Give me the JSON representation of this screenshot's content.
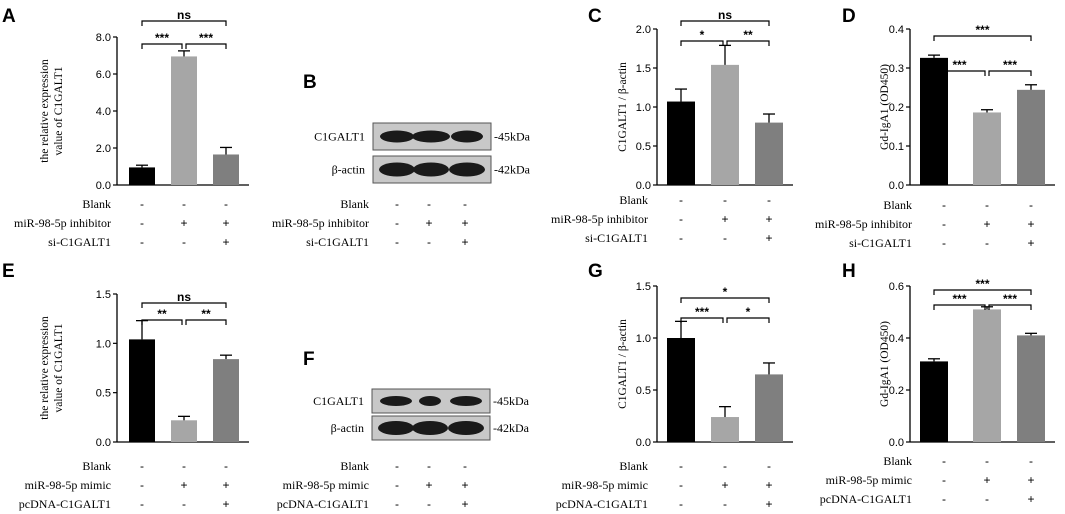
{
  "colors": {
    "blank": "#000000",
    "treated": "#a6a6a6",
    "rescue": "#7f7f7f",
    "blot_bg": "#c8c8c8",
    "band": "#1a1a1a"
  },
  "rows": {
    "blank": "Blank",
    "inhibitor": "miR-98-5p inhibitor",
    "si": "si-C1GALT1",
    "mimic": "miR-98-5p mimic",
    "pcdna": "pcDNA-C1GALT1"
  },
  "signs": {
    "inhibitor_set": [
      [
        "-",
        "-",
        "-"
      ],
      [
        "-",
        "+",
        "+"
      ],
      [
        "-",
        "-",
        "+"
      ]
    ],
    "mimic_set": [
      [
        "-",
        "-",
        "-"
      ],
      [
        "-",
        "+",
        "+"
      ],
      [
        "-",
        "-",
        "+"
      ]
    ]
  },
  "blots": [
    {
      "panel": "B",
      "proteins": [
        "C1GALT1",
        "β-actin"
      ],
      "sizes": [
        "-45kDa",
        "-42kDa"
      ]
    },
    {
      "panel": "F",
      "proteins": [
        "C1GALT1",
        "β-actin"
      ],
      "sizes": [
        "-45kDa",
        "-42kDa"
      ]
    }
  ],
  "chart_data": [
    {
      "panel": "A",
      "type": "bar",
      "title": "",
      "ylabel": [
        "the relative expression",
        "value of C1GALT1"
      ],
      "ylim": [
        0,
        8
      ],
      "yticks": [
        "0.0",
        "2.0",
        "4.0",
        "6.0",
        "8.0"
      ],
      "values": [
        0.95,
        6.95,
        1.65
      ],
      "errors": [
        0.12,
        0.3,
        0.38
      ],
      "significance": [
        "***",
        "***",
        "ns"
      ]
    },
    {
      "panel": "C",
      "type": "bar",
      "title": "",
      "ylabel": [
        "C1GALT1 / β-actin"
      ],
      "ylim": [
        0,
        2
      ],
      "yticks": [
        "0.0",
        "0.5",
        "1.0",
        "1.5",
        "2.0"
      ],
      "values": [
        1.07,
        1.54,
        0.8
      ],
      "errors": [
        0.16,
        0.25,
        0.11
      ],
      "significance": [
        "*",
        "**",
        "ns"
      ]
    },
    {
      "panel": "D",
      "type": "bar",
      "title": "",
      "ylabel": [
        "Gd-IgA1 (OD450)"
      ],
      "ylim": [
        0,
        0.4
      ],
      "yticks": [
        "0.0",
        "0.1",
        "0.2",
        "0.3",
        "0.4"
      ],
      "values": [
        0.326,
        0.186,
        0.244
      ],
      "errors": [
        0.007,
        0.007,
        0.013
      ],
      "significance": [
        "***",
        "***",
        "***"
      ]
    },
    {
      "panel": "E",
      "type": "bar",
      "title": "",
      "ylabel": [
        "the relative expression",
        "value of C1GALT1"
      ],
      "ylim": [
        0,
        1.5
      ],
      "yticks": [
        "0.0",
        "0.5",
        "1.0",
        "1.5"
      ],
      "values": [
        1.04,
        0.22,
        0.84
      ],
      "errors": [
        0.19,
        0.04,
        0.04
      ],
      "significance": [
        "**",
        "**",
        "ns"
      ]
    },
    {
      "panel": "G",
      "type": "bar",
      "title": "",
      "ylabel": [
        "C1GALT1 / β-actin"
      ],
      "ylim": [
        0,
        1.5
      ],
      "yticks": [
        "0.0",
        "0.5",
        "1.0",
        "1.5"
      ],
      "values": [
        1.0,
        0.24,
        0.65
      ],
      "errors": [
        0.16,
        0.1,
        0.11
      ],
      "significance": [
        "***",
        "*",
        "*"
      ]
    },
    {
      "panel": "H",
      "type": "bar",
      "title": "",
      "ylabel": [
        "Gd-IgA1 (OD450)"
      ],
      "ylim": [
        0,
        0.6
      ],
      "yticks": [
        "0.0",
        "0.2",
        "0.4",
        "0.6"
      ],
      "values": [
        0.31,
        0.51,
        0.41
      ],
      "errors": [
        0.01,
        0.01,
        0.008
      ],
      "significance": [
        "***",
        "***",
        "***"
      ]
    }
  ]
}
